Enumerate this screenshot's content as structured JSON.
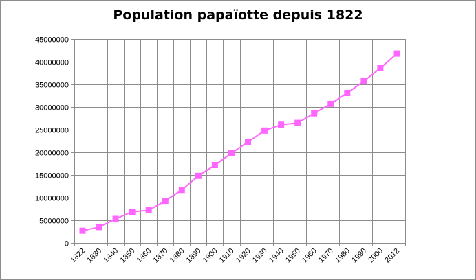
{
  "chart_data": {
    "type": "line",
    "title": "Population papaïotte depuis 1822",
    "xlabel": "",
    "ylabel": "",
    "categories": [
      "1822",
      "1830",
      "1840",
      "1850",
      "1860",
      "1870",
      "1880",
      "1890",
      "1900",
      "1910",
      "1920",
      "1930",
      "1940",
      "1950",
      "1960",
      "1970",
      "1980",
      "1990",
      "2000",
      "2012"
    ],
    "series": [
      {
        "values": [
          2700000,
          3500000,
          5300000,
          6900000,
          7200000,
          9300000,
          11700000,
          14800000,
          17200000,
          19800000,
          22300000,
          24800000,
          26100000,
          26500000,
          28600000,
          30700000,
          33100000,
          35700000,
          38600000,
          41800000
        ]
      }
    ],
    "ylim": [
      0,
      45000000
    ],
    "yticks": [
      "0",
      "5000000",
      "10000000",
      "15000000",
      "20000000",
      "25000000",
      "30000000",
      "35000000",
      "40000000",
      "45000000"
    ],
    "grid": true,
    "legend": "none",
    "colors": {
      "series": "#ff66ff",
      "marker": "#ff66ff",
      "grid": "#8c8c8c",
      "axis": "#8c8c8c"
    }
  }
}
